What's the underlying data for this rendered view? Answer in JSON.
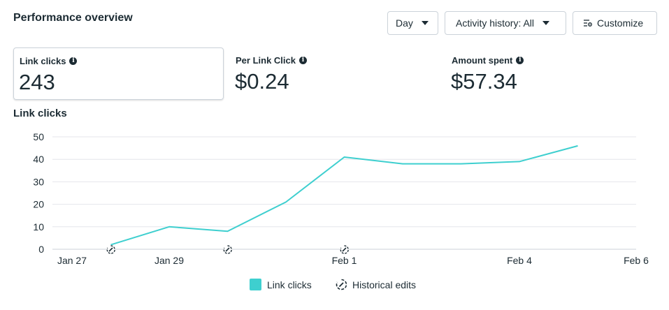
{
  "header": {
    "title": "Performance overview",
    "day_label": "Day",
    "activity_label": "Activity history: All",
    "customize_label": "Customize"
  },
  "metrics": [
    {
      "label": "Link clicks",
      "value": "243",
      "selected": true
    },
    {
      "label": "Per Link Click",
      "value": "$0.24"
    },
    {
      "label": "Amount spent",
      "value": "$57.34"
    }
  ],
  "chart_title": "Link clicks",
  "legend": {
    "link_clicks": "Link clicks",
    "historical_edits": "Historical edits"
  },
  "colors": {
    "line": "#3ecfcf",
    "text": "#1c2b33",
    "grid": "#e4e6eb"
  },
  "chart_data": {
    "type": "line",
    "title": "Link clicks",
    "xlabel": "",
    "ylabel": "",
    "ylim": [
      0,
      50
    ],
    "yticks": [
      0,
      10,
      20,
      30,
      40,
      50
    ],
    "x_ticks": [
      "Jan 27",
      "Jan 29",
      "Feb 1",
      "Feb 4",
      "Feb 6"
    ],
    "x_tick_day": [
      0,
      2,
      5,
      8,
      10
    ],
    "series": [
      {
        "name": "Link clicks",
        "day": [
          1,
          2,
          3,
          4,
          5,
          6,
          7,
          8,
          9
        ],
        "values": [
          2,
          10,
          8,
          21,
          41,
          38,
          38,
          39,
          46
        ]
      }
    ],
    "historical_edits_day": [
      1,
      3,
      5
    ],
    "grid": true,
    "legend_position": "bottom"
  }
}
